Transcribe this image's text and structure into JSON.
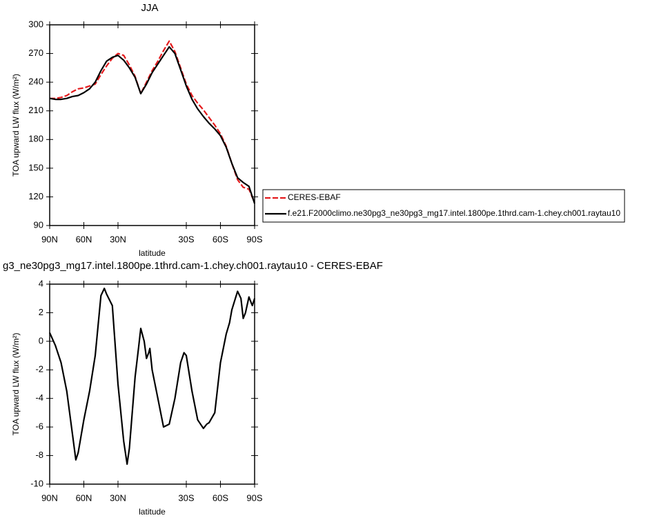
{
  "chart_data": [
    {
      "type": "line",
      "title": "JJA",
      "x_label": "latitude",
      "y_label": "TOA upward LW flux (W/m²)",
      "x": [
        90,
        85,
        80,
        75,
        70,
        65,
        60,
        55,
        50,
        45,
        40,
        35,
        30,
        25,
        20,
        15,
        10,
        5,
        0,
        -5,
        -10,
        -15,
        -20,
        -25,
        -30,
        -35,
        -40,
        -45,
        -50,
        -55,
        -60,
        -65,
        -70,
        -75,
        -80,
        -85,
        -90
      ],
      "series": [
        {
          "name": "CERES-EBAF",
          "color": "#e41a1c",
          "line_style": "dashed",
          "values": [
            223,
            223,
            224,
            226,
            230,
            233,
            234,
            236,
            238,
            248,
            257,
            265,
            270,
            268,
            258,
            246,
            228,
            240,
            252,
            262,
            273,
            283,
            272,
            255,
            238,
            226,
            218,
            211,
            203,
            195,
            186,
            173,
            155,
            138,
            130,
            128,
            114
          ]
        },
        {
          "name": "f.e21.F2000climo.ne30pg3_ne30pg3_mg17.intel.1800pe.1thrd.cam-1.chey.ch001.raytau10",
          "color": "#000000",
          "line_style": "solid",
          "values": [
            223,
            222,
            222,
            223,
            225,
            226,
            229,
            233,
            240,
            252,
            262,
            266,
            268,
            263,
            255,
            245,
            228,
            238,
            250,
            259,
            268,
            277,
            270,
            253,
            236,
            222,
            212,
            204,
            197,
            191,
            184,
            172,
            155,
            140,
            135,
            131,
            113
          ]
        }
      ],
      "xlim": [
        90,
        -90
      ],
      "xticks": [
        {
          "value": 90,
          "label": "90N"
        },
        {
          "value": 60,
          "label": "60N"
        },
        {
          "value": 30,
          "label": "30N"
        },
        {
          "value": -30,
          "label": "30S"
        },
        {
          "value": -60,
          "label": "60S"
        },
        {
          "value": -90,
          "label": "90S"
        }
      ],
      "ylim": [
        90,
        300
      ],
      "yticks": [
        90,
        120,
        150,
        180,
        210,
        240,
        270,
        300
      ],
      "legend": "right"
    },
    {
      "type": "line",
      "title": "g3_ne30pg3_mg17.intel.1800pe.1thrd.cam-1.chey.ch001.raytau10 - CERES-EBAF",
      "x_label": "latitude",
      "y_label": "TOA upward LW flux (W/m²)",
      "x": [
        90,
        85,
        80,
        75,
        70,
        67,
        65,
        60,
        55,
        50,
        45,
        42,
        40,
        35,
        30,
        25,
        22,
        20,
        15,
        12,
        10,
        7,
        5,
        3,
        2,
        0,
        -5,
        -10,
        -15,
        -20,
        -25,
        -28,
        -30,
        -35,
        -40,
        -45,
        -48,
        -50,
        -55,
        -60,
        -65,
        -68,
        -70,
        -75,
        -78,
        -80,
        -82,
        -85,
        -88,
        -90
      ],
      "series": [
        {
          "color": "#000000",
          "line_style": "solid",
          "values": [
            0.6,
            -0.3,
            -1.5,
            -3.5,
            -6.5,
            -8.3,
            -7.8,
            -5.5,
            -3.5,
            -1,
            3.2,
            3.7,
            3.3,
            2.5,
            -3,
            -7,
            -8.6,
            -7.5,
            -2.5,
            -0.5,
            0.9,
            0,
            -1.2,
            -0.8,
            -0.5,
            -2,
            -4,
            -6,
            -5.8,
            -4,
            -1.5,
            -0.8,
            -1,
            -3.5,
            -5.5,
            -6.1,
            -5.8,
            -5.7,
            -5,
            -1.5,
            0.5,
            1.3,
            2.2,
            3.5,
            3,
            1.6,
            2,
            3.1,
            2.5,
            3
          ]
        }
      ],
      "xlim": [
        90,
        -90
      ],
      "xticks": [
        {
          "value": 90,
          "label": "90N"
        },
        {
          "value": 60,
          "label": "60N"
        },
        {
          "value": 30,
          "label": "30N"
        },
        {
          "value": -30,
          "label": "30S"
        },
        {
          "value": -60,
          "label": "60S"
        },
        {
          "value": -90,
          "label": "90S"
        }
      ],
      "ylim": [
        -10,
        4
      ],
      "yticks": [
        -10,
        -8,
        -6,
        -4,
        -2,
        0,
        2,
        4
      ]
    }
  ]
}
